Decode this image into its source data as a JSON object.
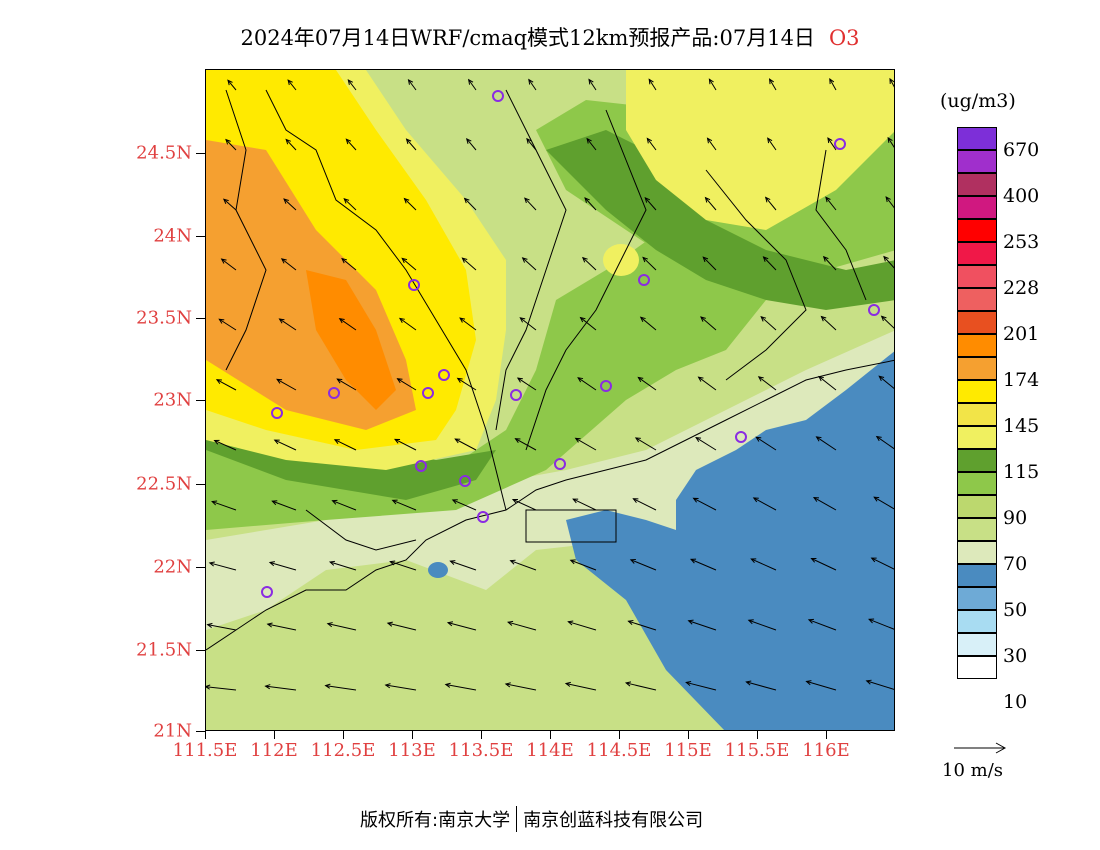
{
  "title": "2024年07月14日WRF/cmaq模式12km预报产品:07月14日",
  "species": "O3",
  "unit": "(ug/m3)",
  "lat_labels": [
    "24.5N",
    "24N",
    "23.5N",
    "23N",
    "22.5N",
    "22N",
    "21.5N",
    "21N"
  ],
  "lon_labels": [
    "111.5E",
    "112E",
    "112.5E",
    "113E",
    "113.5E",
    "114E",
    "114.5E",
    "115E",
    "115.5E",
    "116E"
  ],
  "colorbar": {
    "labels": [
      "670",
      "400",
      "253",
      "228",
      "201",
      "174",
      "145",
      "115",
      "90",
      "70",
      "50",
      "30",
      "10"
    ],
    "colors": [
      "#7d2fd8",
      "#a02fcc",
      "#b03060",
      "#d01880",
      "#ff0000",
      "#f01848",
      "#f05060",
      "#ee6060",
      "#e85020",
      "#ff8c00",
      "#f5a030",
      "#ffea00",
      "#f2e448",
      "#f0f060",
      "#5fa02e",
      "#8ec84a",
      "#bcd86e",
      "#c8e086",
      "#dde9bb",
      "#4a8bc0",
      "#6eaad6",
      "#a8dcf2",
      "#d8f0f8",
      "#ffffff"
    ]
  },
  "wind_reference": "10 m/s",
  "footer": {
    "left": "版权所有:南京大学",
    "right": "南京创蓝科技有限公司"
  },
  "map_colors": {
    "sea": "#4a8bc0",
    "low": "#dde9bb",
    "mid": "#c8e086",
    "green": "#8ec84a",
    "dark_green": "#5fa02e",
    "yellow": "#f0f060",
    "gold": "#ffea00",
    "orange_light": "#f5a030",
    "orange": "#ff8c00"
  }
}
